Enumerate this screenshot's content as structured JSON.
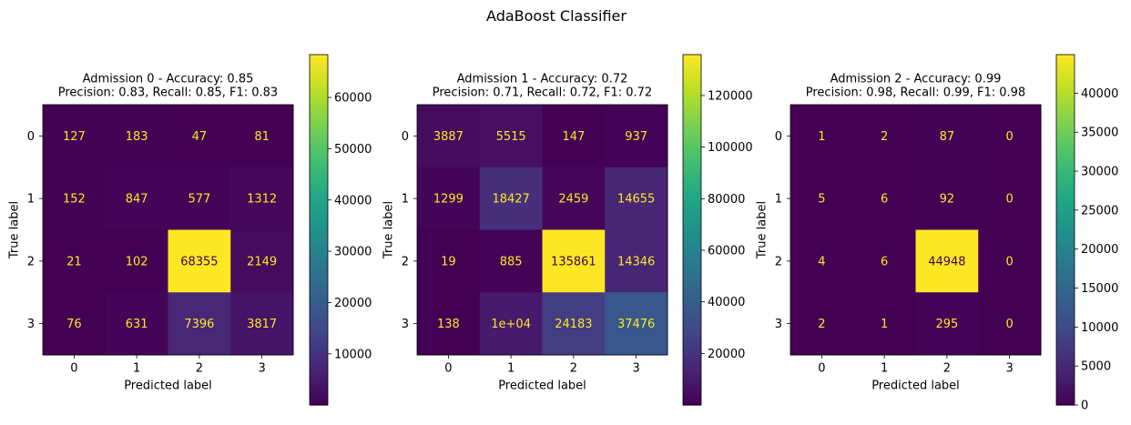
{
  "suptitle": "AdaBoost Classifier",
  "chart_data": [
    {
      "type": "heatmap",
      "title_line1": "Admission 0 - Accuracy: 0.85",
      "title_line2": "Precision: 0.83, Recall: 0.85, F1: 0.83",
      "xlabel": "Predicted label",
      "ylabel": "True label",
      "x_ticks": [
        "0",
        "1",
        "2",
        "3"
      ],
      "y_ticks": [
        "0",
        "1",
        "2",
        "3"
      ],
      "matrix": [
        [
          127,
          183,
          47,
          81
        ],
        [
          152,
          847,
          577,
          1312
        ],
        [
          21,
          102,
          68355,
          2149
        ],
        [
          76,
          631,
          7396,
          3817
        ]
      ],
      "cell_labels": [
        [
          "127",
          "183",
          "47",
          "81"
        ],
        [
          "152",
          "847",
          "577",
          "1312"
        ],
        [
          "21",
          "102",
          "68355",
          "2149"
        ],
        [
          "76",
          "631",
          "7396",
          "3817"
        ]
      ],
      "colormap": "viridis",
      "vmin": 21,
      "vmax": 68355,
      "colorbar_ticks": [
        10000,
        20000,
        30000,
        40000,
        50000,
        60000
      ],
      "colorbar_tick_labels": [
        "10000",
        "20000",
        "30000",
        "40000",
        "50000",
        "60000"
      ]
    },
    {
      "type": "heatmap",
      "title_line1": "Admission 1 - Accuracy: 0.72",
      "title_line2": "Precision: 0.71, Recall: 0.72, F1: 0.72",
      "xlabel": "Predicted label",
      "ylabel": "True label",
      "x_ticks": [
        "0",
        "1",
        "2",
        "3"
      ],
      "y_ticks": [
        "0",
        "1",
        "2",
        "3"
      ],
      "matrix": [
        [
          3887,
          5515,
          147,
          937
        ],
        [
          1299,
          18427,
          2459,
          14655
        ],
        [
          19,
          885,
          135861,
          14346
        ],
        [
          138,
          10000,
          24183,
          37476
        ]
      ],
      "cell_labels": [
        [
          "3887",
          "5515",
          "147",
          "937"
        ],
        [
          "1299",
          "18427",
          "2459",
          "14655"
        ],
        [
          "19",
          "885",
          "135861",
          "14346"
        ],
        [
          "138",
          "1e+04",
          "24183",
          "37476"
        ]
      ],
      "colormap": "viridis",
      "vmin": 19,
      "vmax": 135861,
      "colorbar_ticks": [
        20000,
        40000,
        60000,
        80000,
        100000,
        120000
      ],
      "colorbar_tick_labels": [
        "20000",
        "40000",
        "60000",
        "80000",
        "100000",
        "120000"
      ]
    },
    {
      "type": "heatmap",
      "title_line1": "Admission 2 - Accuracy: 0.99",
      "title_line2": "Precision: 0.98, Recall: 0.99, F1: 0.98",
      "xlabel": "Predicted label",
      "ylabel": "True label",
      "x_ticks": [
        "0",
        "1",
        "2",
        "3"
      ],
      "y_ticks": [
        "0",
        "1",
        "2",
        "3"
      ],
      "matrix": [
        [
          1,
          2,
          87,
          0
        ],
        [
          5,
          6,
          92,
          0
        ],
        [
          4,
          6,
          44948,
          0
        ],
        [
          2,
          1,
          295,
          0
        ]
      ],
      "cell_labels": [
        [
          "1",
          "2",
          "87",
          "0"
        ],
        [
          "5",
          "6",
          "92",
          "0"
        ],
        [
          "4",
          "6",
          "44948",
          "0"
        ],
        [
          "2",
          "1",
          "295",
          "0"
        ]
      ],
      "colormap": "viridis",
      "vmin": 0,
      "vmax": 44948,
      "colorbar_ticks": [
        0,
        5000,
        10000,
        15000,
        20000,
        25000,
        30000,
        35000,
        40000
      ],
      "colorbar_tick_labels": [
        "0",
        "5000",
        "10000",
        "15000",
        "20000",
        "25000",
        "30000",
        "35000",
        "40000"
      ]
    }
  ]
}
